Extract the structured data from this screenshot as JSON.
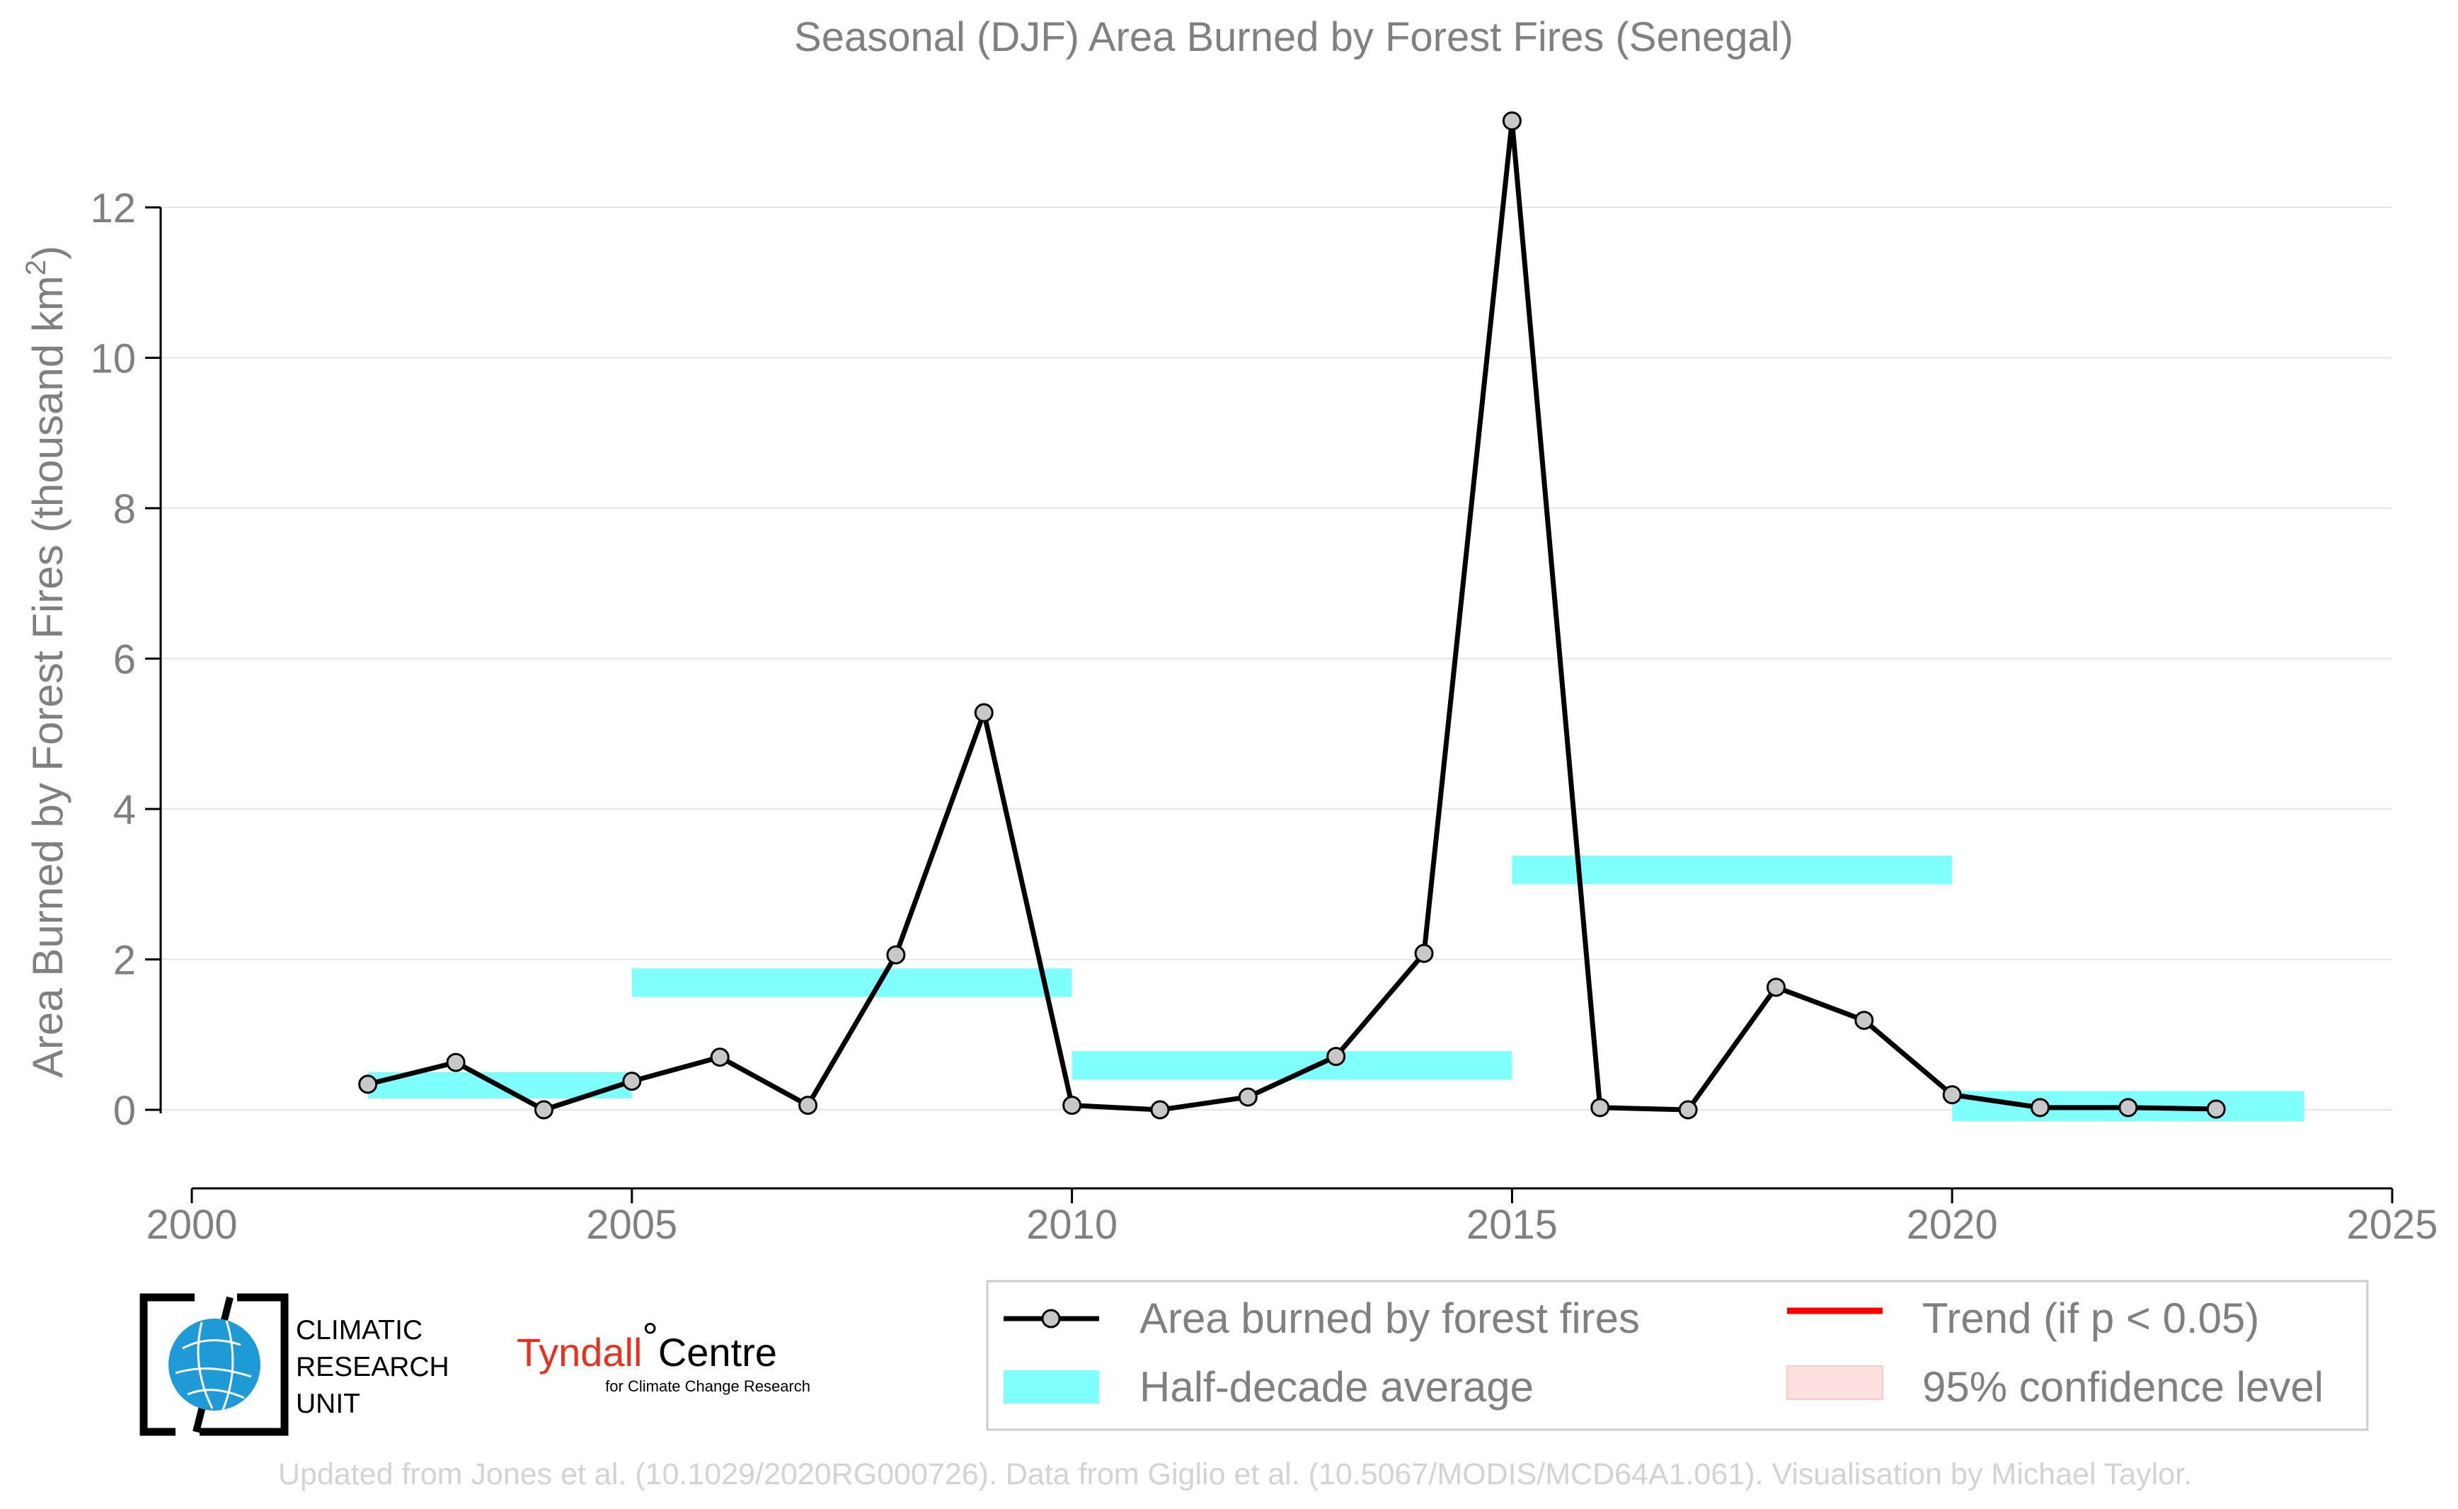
{
  "chart_data": {
    "type": "line",
    "title": "Seasonal (DJF) Area Burned by Forest Fires (Senegal)",
    "xlabel": "",
    "ylabel": "Area Burned by Forest Fires (thousand km",
    "ylabel_sup": "2",
    "ylabel_close": ")",
    "xlim": [
      2000,
      2025
    ],
    "ylim": [
      -1.05,
      13.6
    ],
    "xticks": [
      2000,
      2005,
      2010,
      2015,
      2020,
      2025
    ],
    "yticks": [
      0,
      2,
      4,
      6,
      8,
      10,
      12
    ],
    "grid": "horizontal",
    "series": [
      {
        "name": "Area burned by forest fires",
        "x": [
          2002,
          2003,
          2004,
          2005,
          2006,
          2007,
          2008,
          2009,
          2010,
          2011,
          2012,
          2013,
          2014,
          2015,
          2016,
          2017,
          2018,
          2019,
          2020,
          2021,
          2022,
          2023
        ],
        "y": [
          0.34,
          0.63,
          0.0,
          0.38,
          0.7,
          0.06,
          2.06,
          5.28,
          0.06,
          0.0,
          0.17,
          0.71,
          2.08,
          13.15,
          0.03,
          0.0,
          1.63,
          1.19,
          0.2,
          0.03,
          0.03,
          0.01
        ]
      }
    ],
    "half_decade_average": {
      "name": "Half-decade average",
      "segments": [
        {
          "x0": 2002,
          "x1": 2005,
          "low": 0.15,
          "high": 0.5
        },
        {
          "x0": 2005,
          "x1": 2010,
          "low": 1.5,
          "high": 1.88
        },
        {
          "x0": 2010,
          "x1": 2015,
          "low": 0.4,
          "high": 0.78
        },
        {
          "x0": 2015,
          "x1": 2020,
          "low": 3.0,
          "high": 3.38
        },
        {
          "x0": 2020,
          "x1": 2024,
          "low": -0.15,
          "high": 0.25
        }
      ]
    },
    "legend": {
      "placement": "bottom-right",
      "entries": [
        {
          "label": "Area burned by forest fires",
          "kind": "line-marker"
        },
        {
          "label": "Trend (if p < 0.05)",
          "kind": "line"
        },
        {
          "label": "Half-decade average",
          "kind": "patch"
        },
        {
          "label": "95% confidence level",
          "kind": "patch"
        }
      ]
    },
    "colors": {
      "series_line": "#000000",
      "marker_fill": "#c8c8c8",
      "half_decade": "#80ffff",
      "trend": "#ff0000",
      "confidence": "#ffe0e0",
      "grid": "#e6e6e6",
      "text": "#808080"
    }
  },
  "logos": {
    "cru": {
      "line1": "CLIMATIC",
      "line2": "RESEARCH",
      "line3": "UNIT",
      "icon": "globe-icon"
    },
    "tyndall": {
      "name": "Tyndall",
      "degree": "°",
      "centre": "Centre",
      "sub": "for Climate Change Research"
    }
  },
  "credit": "Updated from Jones et al. (10.1029/2020RG000726). Data from Giglio et al. (10.5067/MODIS/MCD64A1.061). Visualisation by Michael Taylor."
}
